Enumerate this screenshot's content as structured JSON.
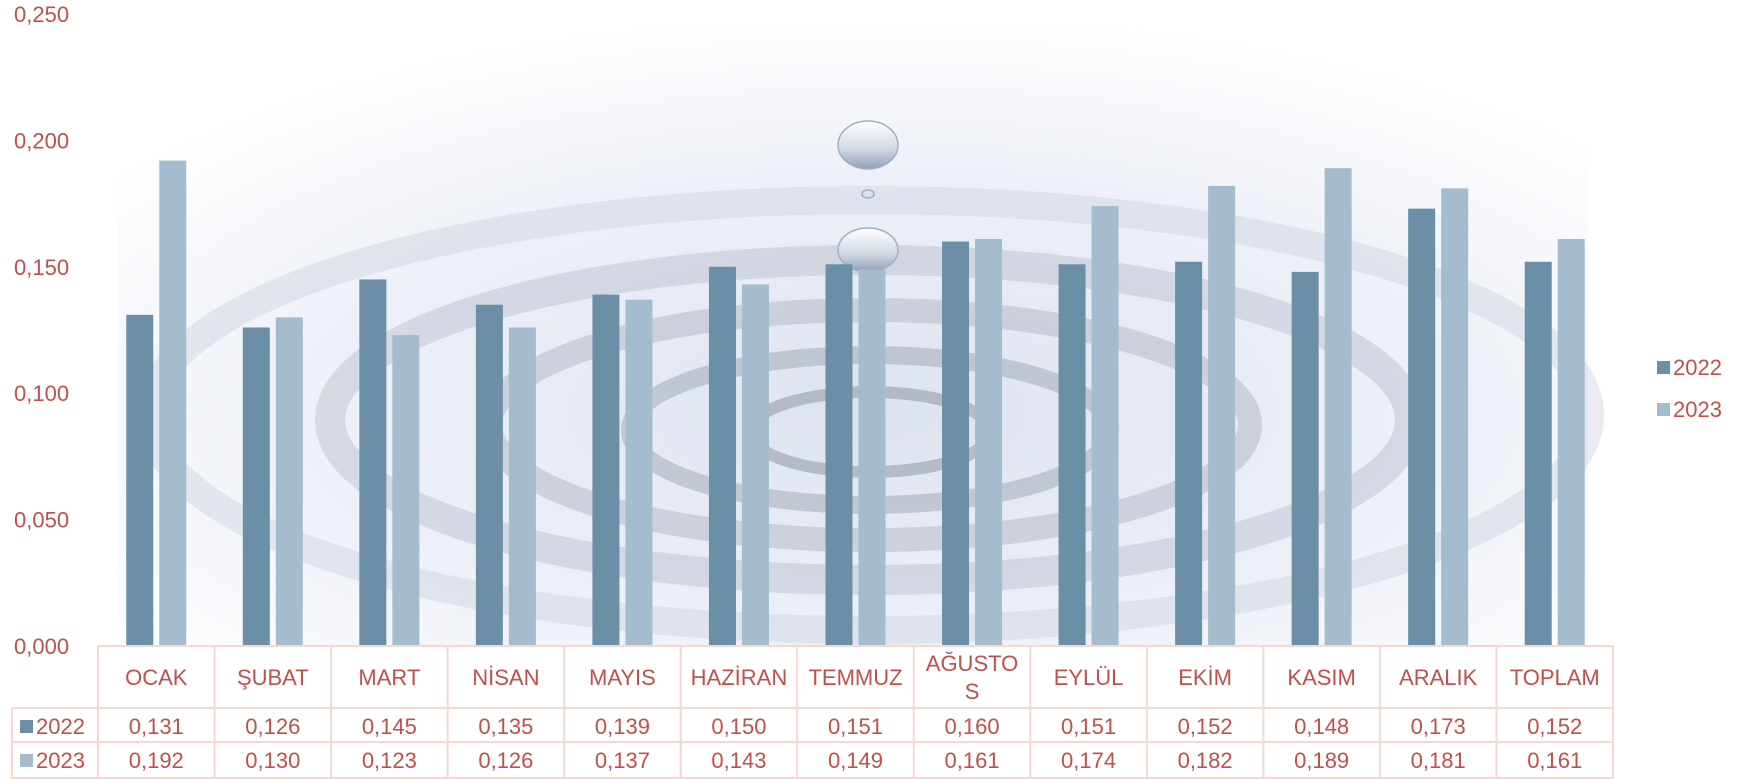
{
  "chart_data": {
    "type": "bar",
    "categories": [
      "OCAK",
      "ŞUBAT",
      "MART",
      "NİSAN",
      "MAYIS",
      "HAZİRAN",
      "TEMMUZ",
      "AĞUSTOS",
      "EYLÜL",
      "EKİM",
      "KASIM",
      "ARALIK",
      "TOPLAM"
    ],
    "category_lines": [
      [
        "OCAK"
      ],
      [
        "ŞUBAT"
      ],
      [
        "MART"
      ],
      [
        "NİSAN"
      ],
      [
        "MAYIS"
      ],
      [
        "HAZİRAN"
      ],
      [
        "TEMMUZ"
      ],
      [
        "AĞUSTO",
        "S"
      ],
      [
        "EYLÜL"
      ],
      [
        "EKİM"
      ],
      [
        "KASIM"
      ],
      [
        "ARALIK"
      ],
      [
        "TOPLAM"
      ]
    ],
    "series": [
      {
        "name": "2022",
        "color": "#6a8fa6",
        "values": [
          0.131,
          0.126,
          0.145,
          0.135,
          0.139,
          0.15,
          0.151,
          0.16,
          0.151,
          0.152,
          0.148,
          0.173,
          0.152
        ],
        "labels": [
          "0,131",
          "0,126",
          "0,145",
          "0,135",
          "0,139",
          "0,150",
          "0,151",
          "0,160",
          "0,151",
          "0,152",
          "0,148",
          "0,173",
          "0,152"
        ]
      },
      {
        "name": "2023",
        "color": "#a4bccd",
        "values": [
          0.192,
          0.13,
          0.123,
          0.126,
          0.137,
          0.143,
          0.149,
          0.161,
          0.174,
          0.182,
          0.189,
          0.181,
          0.161
        ],
        "labels": [
          "0,192",
          "0,130",
          "0,123",
          "0,126",
          "0,137",
          "0,143",
          "0,149",
          "0,161",
          "0,174",
          "0,182",
          "0,189",
          "0,181",
          "0,161"
        ]
      }
    ],
    "ylim": [
      0,
      0.25
    ],
    "yticks": [
      0,
      0.05,
      0.1,
      0.15,
      0.2,
      0.25
    ],
    "ytick_labels": [
      "0,000",
      "0,050",
      "0,100",
      "0,150",
      "0,200",
      "0,250"
    ],
    "legend_position": "right",
    "data_table": true,
    "grid": false,
    "label_color": "#c0504d",
    "table_border_color": "#f2d9d2"
  }
}
